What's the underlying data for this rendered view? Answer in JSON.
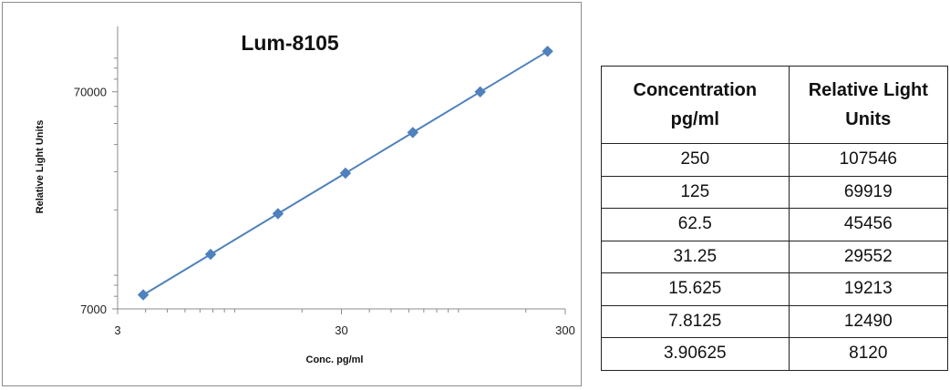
{
  "chart_data": {
    "type": "scatter",
    "title": "Lum-8105",
    "xlabel": "Conc. pg/ml",
    "ylabel": "Relative Light Units",
    "x_scale": "log",
    "y_scale": "log",
    "xlim": [
      3,
      300
    ],
    "ylim": [
      7000,
      140000
    ],
    "x_ticks": [
      3,
      30,
      300
    ],
    "y_ticks": [
      7000,
      70000
    ],
    "x_tick_labels": [
      "3",
      "30",
      "300"
    ],
    "y_tick_labels": [
      "7000",
      "70000"
    ],
    "grid": false,
    "legend": "none",
    "series": [
      {
        "x": [
          3.90625,
          7.8125,
          15.625,
          31.25,
          62.5,
          125,
          250
        ],
        "y": [
          8120,
          12490,
          19213,
          29552,
          45456,
          69919,
          107546
        ],
        "color": "#4f81bd",
        "marker": "diamond",
        "line": true
      }
    ]
  },
  "table": {
    "headers": [
      [
        "Concentration",
        "pg/ml"
      ],
      [
        "Relative Light",
        "Units"
      ]
    ],
    "rows": [
      [
        "250",
        "107546"
      ],
      [
        "125",
        "69919"
      ],
      [
        "62.5",
        "45456"
      ],
      [
        "31.25",
        "29552"
      ],
      [
        "15.625",
        "19213"
      ],
      [
        "7.8125",
        "12490"
      ],
      [
        "3.90625",
        "8120"
      ]
    ]
  }
}
